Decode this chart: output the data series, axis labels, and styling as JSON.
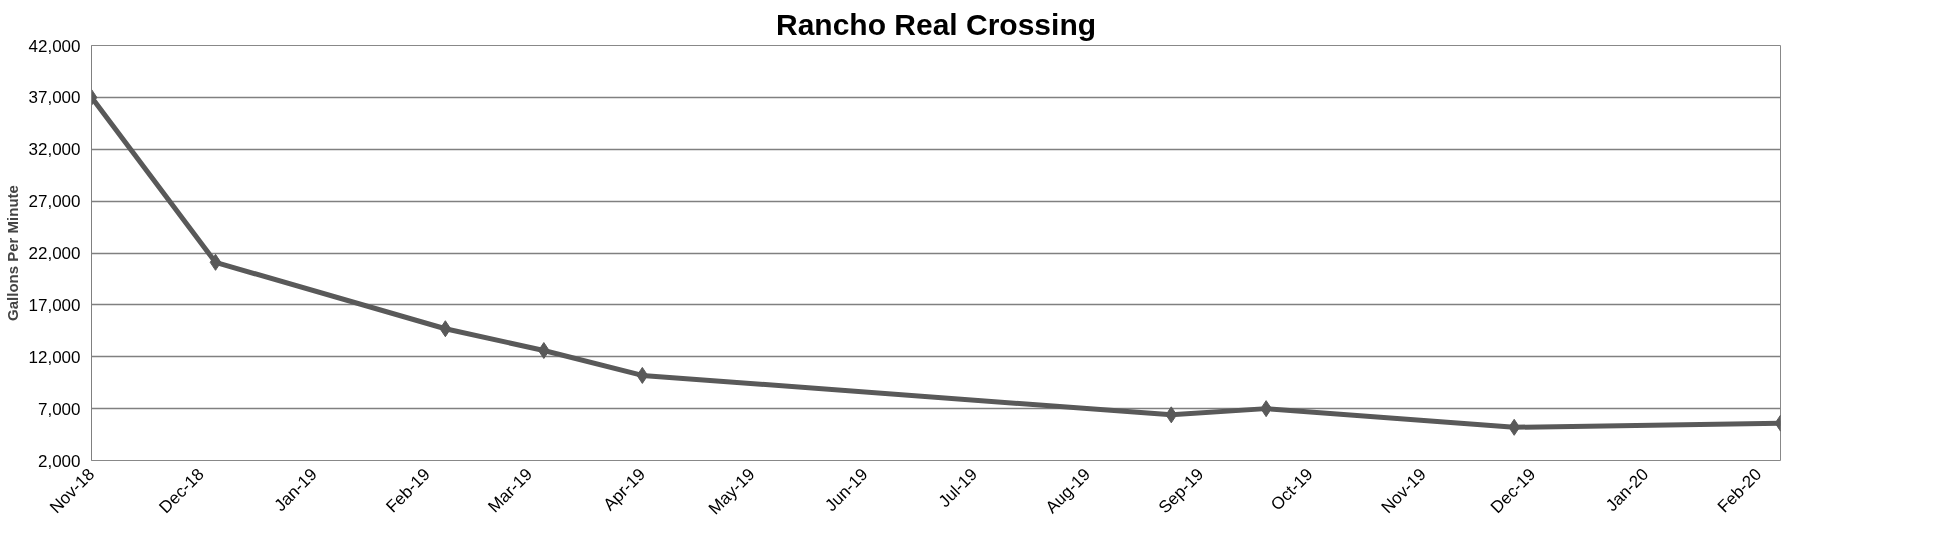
{
  "chart_data": {
    "type": "line",
    "title": "Rancho Real Crossing",
    "ylabel": "Gallons Per Minute",
    "x": [
      "2018-11-01",
      "2018-12-05",
      "2019-02-06",
      "2019-03-05",
      "2019-04-01",
      "2019-08-24",
      "2019-09-19",
      "2019-11-26",
      "2020-02-07"
    ],
    "series": [
      {
        "color": "#595959",
        "values": [
          37000,
          21100,
          14700,
          12600,
          10200,
          6400,
          7000,
          5200,
          5600
        ]
      }
    ],
    "xlim": [
      "2018-11-01",
      "2020-02-07"
    ],
    "xticks": [
      {
        "value": "2018-11-01",
        "label": "Nov-18"
      },
      {
        "value": "2018-12-01",
        "label": "Dec-18"
      },
      {
        "value": "2019-01-01",
        "label": "Jan-19"
      },
      {
        "value": "2019-02-01",
        "label": "Feb-19"
      },
      {
        "value": "2019-03-01",
        "label": "Mar-19"
      },
      {
        "value": "2019-04-01",
        "label": "Apr-19"
      },
      {
        "value": "2019-05-01",
        "label": "May-19"
      },
      {
        "value": "2019-06-01",
        "label": "Jun-19"
      },
      {
        "value": "2019-07-01",
        "label": "Jul-19"
      },
      {
        "value": "2019-08-01",
        "label": "Aug-19"
      },
      {
        "value": "2019-09-01",
        "label": "Sep-19"
      },
      {
        "value": "2019-10-01",
        "label": "Oct-19"
      },
      {
        "value": "2019-11-01",
        "label": "Nov-19"
      },
      {
        "value": "2019-12-01",
        "label": "Dec-19"
      },
      {
        "value": "2020-01-01",
        "label": "Jan-20"
      },
      {
        "value": "2020-02-01",
        "label": "Feb-20"
      }
    ],
    "ylim": [
      2000,
      42000
    ],
    "yticks": [
      {
        "value": 2000,
        "label": "2,000"
      },
      {
        "value": 7000,
        "label": "7,000"
      },
      {
        "value": 12000,
        "label": "12,000"
      },
      {
        "value": 17000,
        "label": "17,000"
      },
      {
        "value": 22000,
        "label": "22,000"
      },
      {
        "value": 27000,
        "label": "27,000"
      },
      {
        "value": 32000,
        "label": "32,000"
      },
      {
        "value": 37000,
        "label": "37,000"
      },
      {
        "value": 42000,
        "label": "42,000"
      }
    ],
    "grid": "y",
    "marker": "diamond",
    "line_style": "solid"
  }
}
